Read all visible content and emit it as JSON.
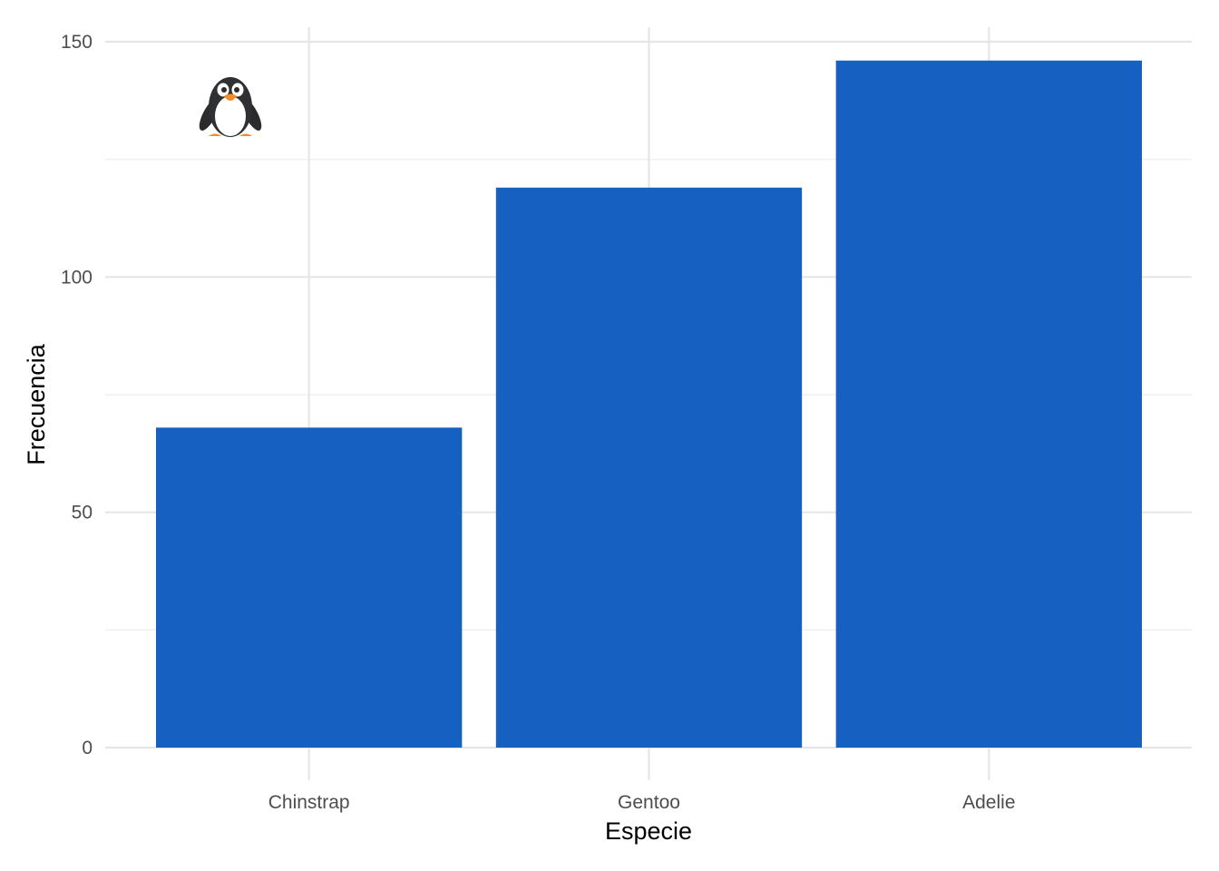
{
  "chart_data": {
    "type": "bar",
    "categories": [
      "Chinstrap",
      "Gentoo",
      "Adelie"
    ],
    "values": [
      68,
      119,
      146
    ],
    "xlabel": "Especie",
    "ylabel": "Frecuencia",
    "ylim": [
      0,
      150
    ],
    "yticks": [
      0,
      50,
      100,
      150
    ],
    "ytick_labels": [
      "0",
      "50",
      "100",
      "150"
    ],
    "grid": true,
    "bar_color": "#1660C2",
    "annotation_icon": "penguin-icon"
  }
}
